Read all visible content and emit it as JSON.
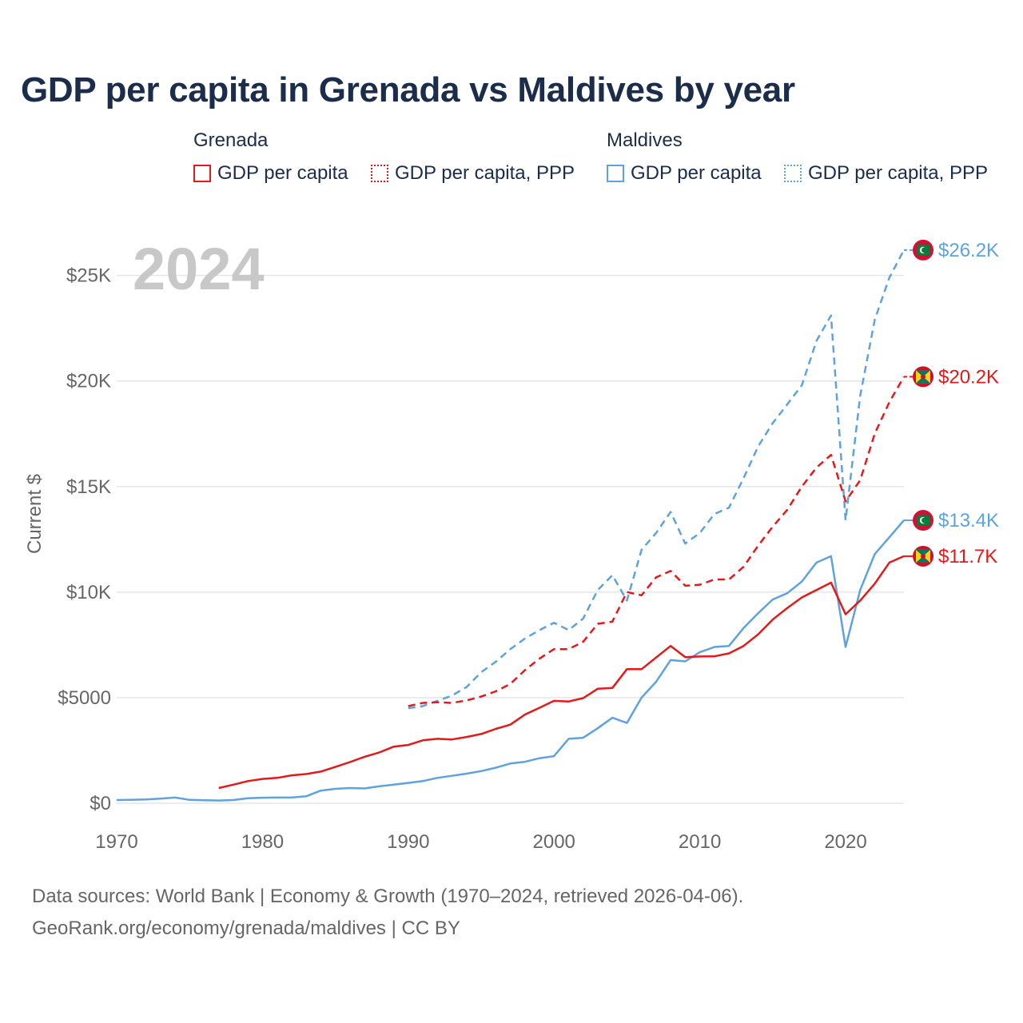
{
  "title": "GDP per capita in Grenada vs Maldives by year",
  "legend": {
    "grenada": {
      "title": "Grenada",
      "items": [
        "GDP per capita",
        "GDP per capita, PPP"
      ]
    },
    "maldives": {
      "title": "Maldives",
      "items": [
        "GDP per capita",
        "GDP per capita, PPP"
      ]
    }
  },
  "colors": {
    "grenada": "#e31a1c",
    "maldives": "#5fa2dd",
    "grid": "#e6e6e6",
    "axis_text": "#666666",
    "year_watermark": "#c8c8c8"
  },
  "footer": {
    "line1": "Data sources: World Bank | Economy & Growth (1970–2024, retrieved 2026-04-06).",
    "line2": "GeoRank.org/economy/grenada/maldives | CC BY"
  },
  "chart_data": {
    "type": "line",
    "year_label": "2024",
    "ylabel": "Current $",
    "xlim": [
      1970,
      2024
    ],
    "ylim": [
      0,
      26500
    ],
    "x_ticks": [
      1970,
      1980,
      1990,
      2000,
      2010,
      2020
    ],
    "y_ticks": [
      {
        "value": 0,
        "label": "$0"
      },
      {
        "value": 5000,
        "label": "$5000"
      },
      {
        "value": 10000,
        "label": "$10K"
      },
      {
        "value": 15000,
        "label": "$15K"
      },
      {
        "value": 20000,
        "label": "$20K"
      },
      {
        "value": 25000,
        "label": "$25K"
      }
    ],
    "series": [
      {
        "name": "Maldives GDP per capita, PPP",
        "country": "maldives",
        "dashed": true,
        "end_label": "$26.2K",
        "x": [
          1990,
          1991,
          1992,
          1993,
          1994,
          1995,
          1996,
          1997,
          1998,
          1999,
          2000,
          2001,
          2002,
          2003,
          2004,
          2005,
          2006,
          2007,
          2008,
          2009,
          2010,
          2011,
          2012,
          2013,
          2014,
          2015,
          2016,
          2017,
          2018,
          2019,
          2020,
          2021,
          2022,
          2023,
          2024
        ],
        "values": [
          4500,
          4600,
          4850,
          5100,
          5500,
          6200,
          6700,
          7300,
          7800,
          8200,
          8550,
          8200,
          8750,
          10100,
          10800,
          9600,
          12000,
          12800,
          13800,
          12300,
          12800,
          13700,
          14000,
          15400,
          16900,
          18000,
          18900,
          19800,
          21900,
          23100,
          13400,
          19300,
          22900,
          24900,
          26200
        ]
      },
      {
        "name": "Grenada GDP per capita, PPP",
        "country": "grenada",
        "dashed": true,
        "end_label": "$20.2K",
        "x": [
          1990,
          1991,
          1992,
          1993,
          1994,
          1995,
          1996,
          1997,
          1998,
          1999,
          2000,
          2001,
          2002,
          2003,
          2004,
          2005,
          2006,
          2007,
          2008,
          2009,
          2010,
          2011,
          2012,
          2013,
          2014,
          2015,
          2016,
          2017,
          2018,
          2019,
          2020,
          2021,
          2022,
          2023,
          2024
        ],
        "values": [
          4600,
          4750,
          4780,
          4750,
          4870,
          5050,
          5300,
          5650,
          6300,
          6850,
          7300,
          7300,
          7650,
          8500,
          8600,
          10000,
          9850,
          10700,
          11000,
          10300,
          10350,
          10600,
          10600,
          11200,
          12200,
          13100,
          13900,
          15000,
          15900,
          16500,
          14300,
          15300,
          17500,
          19000,
          20200
        ]
      },
      {
        "name": "Maldives GDP per capita",
        "country": "maldives",
        "dashed": false,
        "end_label": "$13.4K",
        "x": [
          1970,
          1971,
          1972,
          1973,
          1974,
          1975,
          1976,
          1977,
          1978,
          1979,
          1980,
          1981,
          1982,
          1983,
          1984,
          1985,
          1986,
          1987,
          1988,
          1989,
          1990,
          1991,
          1992,
          1993,
          1994,
          1995,
          1996,
          1997,
          1998,
          1999,
          2000,
          2001,
          2002,
          2003,
          2004,
          2005,
          2006,
          2007,
          2008,
          2009,
          2010,
          2011,
          2012,
          2013,
          2014,
          2015,
          2016,
          2017,
          2018,
          2019,
          2020,
          2021,
          2022,
          2023,
          2024
        ],
        "values": [
          150,
          160,
          180,
          220,
          270,
          160,
          140,
          130,
          150,
          240,
          260,
          270,
          270,
          330,
          600,
          680,
          720,
          700,
          800,
          880,
          960,
          1050,
          1200,
          1300,
          1400,
          1520,
          1680,
          1880,
          1960,
          2130,
          2230,
          3050,
          3100,
          3550,
          4050,
          3800,
          5000,
          5750,
          6780,
          6720,
          7150,
          7400,
          7450,
          8300,
          9000,
          9650,
          9950,
          10500,
          11400,
          11700,
          7400,
          10100,
          11800,
          12600,
          13400
        ]
      },
      {
        "name": "Grenada GDP per capita",
        "country": "grenada",
        "dashed": false,
        "end_label": "$11.7K",
        "x": [
          1977,
          1978,
          1979,
          1980,
          1981,
          1982,
          1983,
          1984,
          1985,
          1986,
          1987,
          1988,
          1989,
          1990,
          1991,
          1992,
          1993,
          1994,
          1995,
          1996,
          1997,
          1998,
          1999,
          2000,
          2001,
          2002,
          2003,
          2004,
          2005,
          2006,
          2007,
          2008,
          2009,
          2010,
          2011,
          2012,
          2013,
          2014,
          2015,
          2016,
          2017,
          2018,
          2019,
          2020,
          2021,
          2022,
          2023,
          2024
        ],
        "values": [
          720,
          880,
          1050,
          1150,
          1200,
          1320,
          1380,
          1500,
          1720,
          1950,
          2200,
          2400,
          2680,
          2760,
          2980,
          3050,
          3020,
          3140,
          3280,
          3520,
          3720,
          4200,
          4520,
          4850,
          4820,
          4980,
          5420,
          5460,
          6350,
          6350,
          6900,
          7450,
          6920,
          6950,
          6960,
          7100,
          7450,
          8000,
          8700,
          9250,
          9750,
          10100,
          10450,
          8950,
          9600,
          10400,
          11400,
          11700
        ]
      }
    ]
  }
}
